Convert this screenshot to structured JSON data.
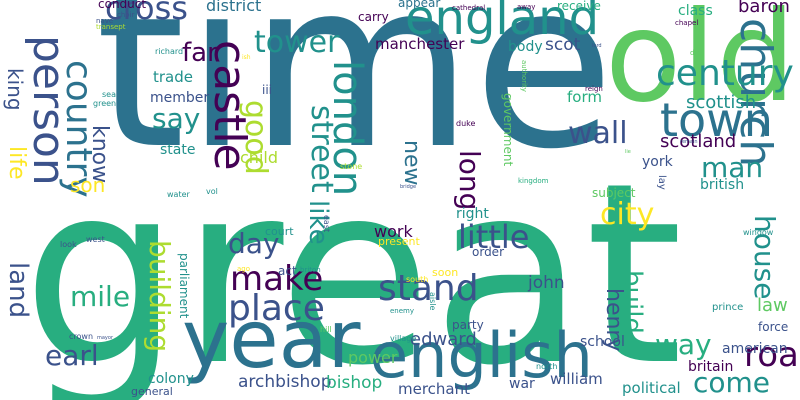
{
  "palette": {
    "dark_purple": "#440154",
    "indigo": "#3b528b",
    "steel_blue": "#2c728e",
    "teal": "#21918c",
    "green_teal": "#28ae80",
    "green": "#5ec962",
    "yellow_green": "#addc30",
    "yellow": "#fde725"
  },
  "words": [
    {
      "text": "great",
      "color": "green_teal"
    },
    {
      "text": "time",
      "color": "steel_blue"
    },
    {
      "text": "year",
      "color": "steel_blue"
    },
    {
      "text": "old",
      "color": "green"
    },
    {
      "text": "english",
      "color": "steel_blue"
    },
    {
      "text": "church",
      "color": "steel_blue"
    },
    {
      "text": "england",
      "color": "teal"
    },
    {
      "text": "castle",
      "color": "dark_purple"
    },
    {
      "text": "person",
      "color": "indigo"
    },
    {
      "text": "town",
      "color": "steel_blue"
    },
    {
      "text": "london",
      "color": "teal"
    },
    {
      "text": "century",
      "color": "teal"
    },
    {
      "text": "country",
      "color": "steel_blue"
    },
    {
      "text": "make",
      "color": "dark_purple"
    },
    {
      "text": "place",
      "color": "indigo"
    },
    {
      "text": "road",
      "color": "dark_purple"
    },
    {
      "text": "cross",
      "color": "indigo"
    },
    {
      "text": "tower",
      "color": "teal"
    },
    {
      "text": "street",
      "color": "teal"
    },
    {
      "text": "wall",
      "color": "indigo"
    },
    {
      "text": "little",
      "color": "indigo"
    },
    {
      "text": "stand",
      "color": "indigo"
    },
    {
      "text": "good",
      "color": "yellow_green"
    },
    {
      "text": "long",
      "color": "dark_purple"
    },
    {
      "text": "building",
      "color": "yellow_green"
    },
    {
      "text": "come",
      "color": "teal"
    },
    {
      "text": "man",
      "color": "teal"
    },
    {
      "text": "way",
      "color": "green_teal"
    },
    {
      "text": "day",
      "color": "indigo"
    },
    {
      "text": "mile",
      "color": "green_teal"
    },
    {
      "text": "far",
      "color": "dark_purple"
    },
    {
      "text": "say",
      "color": "teal"
    },
    {
      "text": "like",
      "color": "teal"
    },
    {
      "text": "earl",
      "color": "indigo"
    },
    {
      "text": "land",
      "color": "indigo"
    },
    {
      "text": "city",
      "color": "yellow"
    },
    {
      "text": "house",
      "color": "teal"
    },
    {
      "text": "build",
      "color": "green_teal"
    },
    {
      "text": "henry",
      "color": "indigo"
    },
    {
      "text": "king",
      "color": "indigo"
    },
    {
      "text": "life",
      "color": "yellow"
    },
    {
      "text": "know",
      "color": "indigo"
    },
    {
      "text": "new",
      "color": "steel_blue"
    },
    {
      "text": "son",
      "color": "yellow"
    },
    {
      "text": "scotland",
      "color": "dark_purple"
    },
    {
      "text": "scottish",
      "color": "teal"
    },
    {
      "text": "edward",
      "color": "indigo"
    },
    {
      "text": "archbishop",
      "color": "indigo"
    },
    {
      "text": "bishop",
      "color": "green_teal"
    },
    {
      "text": "john",
      "color": "indigo"
    },
    {
      "text": "law",
      "color": "green"
    },
    {
      "text": "baron",
      "color": "dark_purple"
    },
    {
      "text": "district",
      "color": "steel_blue"
    },
    {
      "text": "conduct",
      "color": "dark_purple"
    },
    {
      "text": "manchester",
      "color": "dark_purple"
    },
    {
      "text": "scot",
      "color": "indigo"
    },
    {
      "text": "body",
      "color": "teal"
    },
    {
      "text": "trade",
      "color": "teal"
    },
    {
      "text": "member",
      "color": "indigo"
    },
    {
      "text": "state",
      "color": "teal"
    },
    {
      "text": "child",
      "color": "yellow_green"
    },
    {
      "text": "work",
      "color": "dark_purple"
    },
    {
      "text": "right",
      "color": "teal"
    },
    {
      "text": "order",
      "color": "indigo"
    },
    {
      "text": "party",
      "color": "indigo"
    },
    {
      "text": "school",
      "color": "indigo"
    },
    {
      "text": "william",
      "color": "indigo"
    },
    {
      "text": "merchant",
      "color": "indigo"
    },
    {
      "text": "political",
      "color": "teal"
    },
    {
      "text": "power",
      "color": "green"
    },
    {
      "text": "colony",
      "color": "teal"
    },
    {
      "text": "american",
      "color": "indigo"
    },
    {
      "text": "britain",
      "color": "dark_purple"
    },
    {
      "text": "british",
      "color": "teal"
    },
    {
      "text": "form",
      "color": "green_teal"
    },
    {
      "text": "york",
      "color": "indigo"
    },
    {
      "text": "class",
      "color": "green_teal"
    },
    {
      "text": "carry",
      "color": "dark_purple"
    },
    {
      "text": "appear",
      "color": "steel_blue"
    },
    {
      "text": "receive",
      "color": "green_teal"
    },
    {
      "text": "subject",
      "color": "green"
    },
    {
      "text": "government",
      "color": "green"
    },
    {
      "text": "parliament",
      "color": "teal"
    },
    {
      "text": "present",
      "color": "yellow"
    },
    {
      "text": "court",
      "color": "teal"
    },
    {
      "text": "act",
      "color": "indigo"
    },
    {
      "text": "soon",
      "color": "yellow"
    },
    {
      "text": "force",
      "color": "indigo"
    },
    {
      "text": "general",
      "color": "indigo"
    },
    {
      "text": "prince",
      "color": "teal"
    },
    {
      "text": "war",
      "color": "indigo"
    },
    {
      "text": "village",
      "color": "teal"
    },
    {
      "text": "duke",
      "color": "dark_purple"
    },
    {
      "text": "iii",
      "color": "indigo"
    },
    {
      "text": "lay",
      "color": "indigo"
    },
    {
      "text": "window",
      "color": "teal"
    },
    {
      "text": "look",
      "color": "indigo"
    },
    {
      "text": "west",
      "color": "indigo"
    },
    {
      "text": "richard",
      "color": "teal"
    },
    {
      "text": "sea",
      "color": "teal"
    },
    {
      "text": "green",
      "color": "teal"
    },
    {
      "text": "water",
      "color": "teal"
    },
    {
      "text": "vol",
      "color": "teal"
    },
    {
      "text": "east",
      "color": "indigo"
    },
    {
      "text": "ago",
      "color": "yellow"
    },
    {
      "text": "briton",
      "color": "teal"
    },
    {
      "text": "aisle",
      "color": "teal"
    },
    {
      "text": "crown",
      "color": "indigo"
    },
    {
      "text": "north",
      "color": "teal"
    },
    {
      "text": "south",
      "color": "yellow"
    },
    {
      "text": "enemy",
      "color": "teal"
    },
    {
      "text": "hill",
      "color": "green"
    },
    {
      "text": "stone",
      "color": "yellow_green"
    },
    {
      "text": "kingdom",
      "color": "green_teal"
    },
    {
      "text": "reign",
      "color": "dark_purple"
    },
    {
      "text": "cathedral",
      "color": "dark_purple"
    },
    {
      "text": "chapel",
      "color": "dark_purple"
    },
    {
      "text": "authority",
      "color": "green"
    },
    {
      "text": "choir",
      "color": "indigo"
    },
    {
      "text": "nave",
      "color": "indigo"
    },
    {
      "text": "transept",
      "color": "yellow_green"
    },
    {
      "text": "away",
      "color": "dark_purple"
    },
    {
      "text": "die",
      "color": "green"
    },
    {
      "text": "lord",
      "color": "indigo"
    },
    {
      "text": "ish",
      "color": "yellow"
    },
    {
      "text": "mayor",
      "color": "indigo"
    },
    {
      "text": "bridge",
      "color": "indigo"
    },
    {
      "text": "remain",
      "color": "indigo"
    },
    {
      "text": "lie",
      "color": "green"
    }
  ]
}
